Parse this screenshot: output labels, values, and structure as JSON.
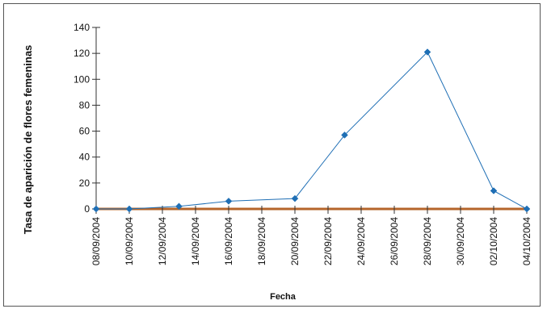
{
  "chart_data": {
    "type": "line",
    "title": "",
    "xlabel": "Fecha",
    "ylabel": "Tasa de aparición de flores femeninas",
    "ylim": [
      0,
      140
    ],
    "yticks": [
      0,
      20,
      40,
      60,
      80,
      100,
      120,
      140
    ],
    "xlim": [
      "08/09/2004",
      "04/10/2004"
    ],
    "xticks": [
      "08/09/2004",
      "10/09/2004",
      "12/09/2004",
      "14/09/2004",
      "16/09/2004",
      "18/09/2004",
      "20/09/2004",
      "22/09/2004",
      "24/09/2004",
      "26/09/2004",
      "28/09/2004",
      "30/09/2004",
      "02/10/2004",
      "04/10/2004"
    ],
    "grid": false,
    "legend": "none",
    "series": [
      {
        "color": "#1f6fb5",
        "marker": "diamond",
        "points": [
          {
            "x": "08/09/2004",
            "y": 0
          },
          {
            "x": "10/09/2004",
            "y": 0
          },
          {
            "x": "13/09/2004",
            "y": 2
          },
          {
            "x": "16/09/2004",
            "y": 6
          },
          {
            "x": "20/09/2004",
            "y": 8
          },
          {
            "x": "23/09/2004",
            "y": 57
          },
          {
            "x": "28/09/2004",
            "y": 121
          },
          {
            "x": "02/10/2004",
            "y": 14
          },
          {
            "x": "04/10/2004",
            "y": 0
          }
        ]
      }
    ],
    "baseline": {
      "y": 0,
      "color": "#b5652a"
    }
  }
}
